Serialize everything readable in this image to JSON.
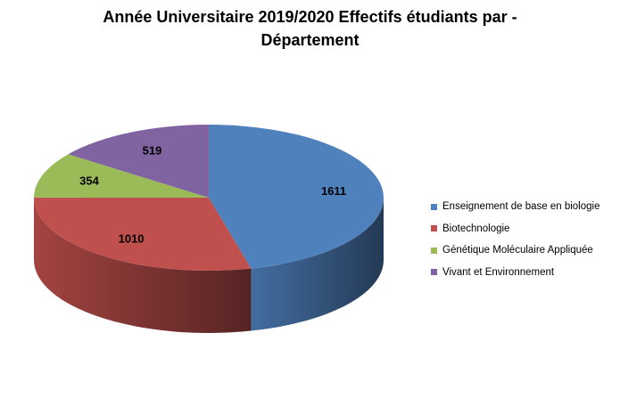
{
  "chart_data": {
    "type": "pie",
    "title_lines": [
      "Année Universitaire 2019/2020 Effectifs étudiants par -",
      "Département"
    ],
    "slices": [
      {
        "name": "Enseignement de base en biologie",
        "value": 1611,
        "color": "#4F81BD"
      },
      {
        "name": "Biotechnologie",
        "value": 1010,
        "color": "#C0504D"
      },
      {
        "name": "Génétique Moléculaire Appliquée",
        "value": 354,
        "color": "#9BBB59"
      },
      {
        "name": "Vivant et Environnement",
        "value": 519,
        "color": "#8064A2"
      }
    ],
    "legend_position": "right",
    "style": "3d"
  }
}
